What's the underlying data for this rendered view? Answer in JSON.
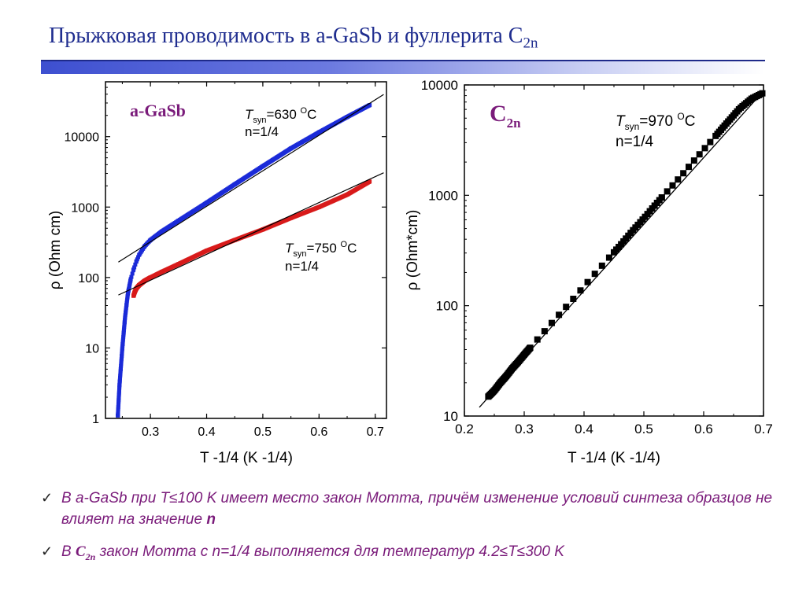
{
  "slide": {
    "title_main": "Прыжковая проводимость в a-GaSb и фуллерита C",
    "title_sub": "2n"
  },
  "colors": {
    "title": "#1f2d8f",
    "accent_text": "#7a1b7a",
    "series_630": "#1a2ad8",
    "series_750": "#d81a1a",
    "c2n_points": "#000000"
  },
  "chart_data": [
    {
      "type": "scatter",
      "panel_label": "a-GaSb",
      "xlabel": "T -1/4 (K -1/4)",
      "ylabel": "ρ (Ohm cm)",
      "yscale": "log",
      "xlim": [
        0.22,
        0.72
      ],
      "ylim": [
        1,
        60000
      ],
      "xticks": [
        "0.3",
        "0.4",
        "0.5",
        "0.6",
        "0.7"
      ],
      "yticks": [
        "1",
        "10",
        "100",
        "1000",
        "10000"
      ],
      "annotations": {
        "a": {
          "t": "T",
          "sub": "syn",
          "rest": "=630 ",
          "sup": "O",
          "unit": "C",
          "n": "n=1/4"
        },
        "b": {
          "t": "T",
          "sub": "syn",
          "rest": "=750 ",
          "sup": "O",
          "unit": "C",
          "n": "n=1/4"
        }
      },
      "series": [
        {
          "label": "T_syn=630 °C",
          "color": "#1a2ad8",
          "x": [
            0.242,
            0.245,
            0.25,
            0.255,
            0.26,
            0.265,
            0.27,
            0.275,
            0.28,
            0.29,
            0.3,
            0.32,
            0.35,
            0.4,
            0.45,
            0.5,
            0.55,
            0.6,
            0.65,
            0.69
          ],
          "y": [
            1.1,
            3,
            10,
            28,
            60,
            95,
            130,
            170,
            210,
            280,
            340,
            450,
            640,
            1150,
            2100,
            3800,
            6800,
            11500,
            19000,
            28000
          ]
        },
        {
          "label": "T_syn=750 °C",
          "color": "#d81a1a",
          "x": [
            0.27,
            0.272,
            0.275,
            0.28,
            0.29,
            0.3,
            0.32,
            0.35,
            0.4,
            0.45,
            0.5,
            0.55,
            0.6,
            0.65,
            0.69
          ],
          "y": [
            55,
            62,
            70,
            78,
            90,
            100,
            120,
            155,
            240,
            340,
            480,
            700,
            1000,
            1500,
            2300
          ]
        }
      ],
      "fit_lines": [
        {
          "x": [
            0.24,
            0.72
          ],
          "y": [
            160,
            42000
          ]
        },
        {
          "x": [
            0.24,
            0.72
          ],
          "y": [
            55,
            3200
          ]
        }
      ]
    },
    {
      "type": "scatter",
      "panel_label": "C2n",
      "xlabel": "T -1/4 (K -1/4)",
      "ylabel": "ρ (Ohm*cm)",
      "yscale": "log",
      "xlim": [
        0.2,
        0.7
      ],
      "ylim": [
        10,
        10000
      ],
      "xticks": [
        "0.2",
        "0.3",
        "0.4",
        "0.5",
        "0.6",
        "0.7"
      ],
      "yticks": [
        "10",
        "100",
        "1000",
        "10000"
      ],
      "annotations": {
        "a": {
          "t": "T",
          "sub": "syn",
          "rest": "=970 ",
          "sup": "O",
          "unit": "C",
          "n": "n=1/4"
        }
      },
      "series": [
        {
          "label": "T_syn=970 °C",
          "color": "#000000",
          "x": [
            0.24,
            0.25,
            0.26,
            0.27,
            0.28,
            0.29,
            0.3,
            0.32,
            0.34,
            0.36,
            0.38,
            0.4,
            0.42,
            0.44,
            0.46,
            0.48,
            0.5,
            0.52,
            0.54,
            0.56,
            0.58,
            0.6,
            0.62,
            0.64,
            0.66,
            0.68,
            0.7
          ],
          "y": [
            15,
            17,
            20,
            23,
            27,
            31,
            36,
            48,
            64,
            85,
            112,
            150,
            200,
            265,
            350,
            470,
            620,
            830,
            1100,
            1450,
            1950,
            2600,
            3450,
            4600,
            6100,
            7500,
            8500
          ]
        }
      ],
      "fit_lines": [
        {
          "x": [
            0.225,
            0.7
          ],
          "y": [
            12,
            8800
          ]
        }
      ]
    }
  ],
  "bullets": [
    {
      "check": "✓",
      "text_1": "В a-GaSb при T≤100 K имеет место закон Мотта, причём изменение условий синтеза образцов не влияет на значение ",
      "bold": "n"
    },
    {
      "check": "✓",
      "text_1": "В ",
      "c2n_base": "C",
      "c2n_sub": "2n",
      "text_2": "  закон Мотта с n=1/4 выполняется для температур 4.2≤T≤300 K"
    }
  ]
}
